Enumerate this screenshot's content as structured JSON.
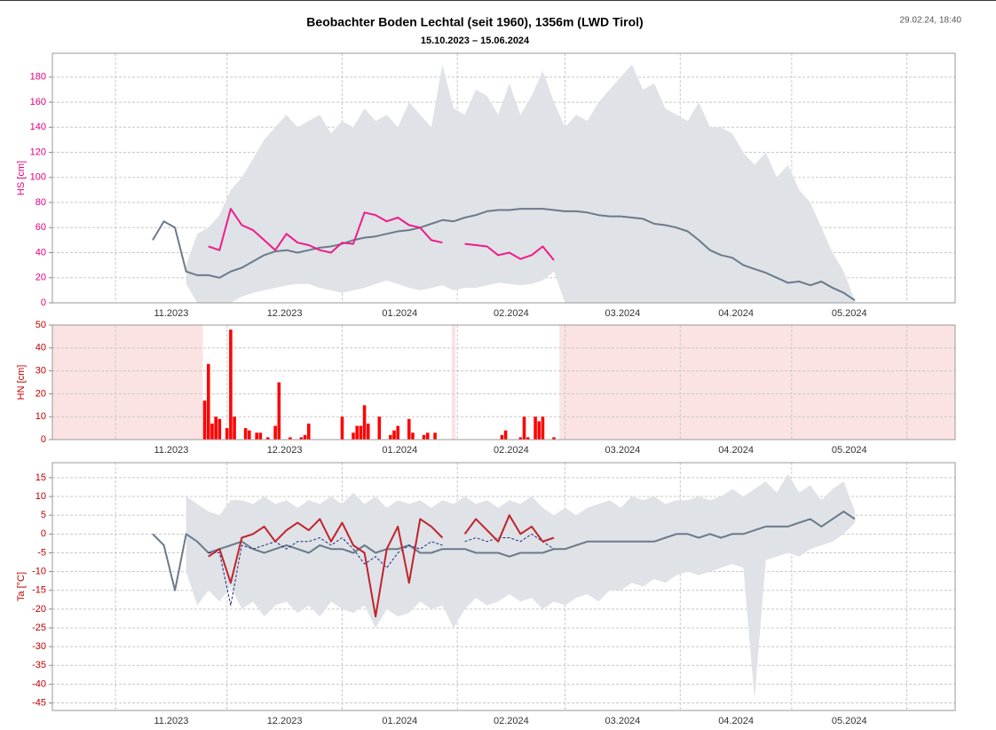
{
  "header": {
    "title": "Beobachter Boden Lechtal (seit 1960), 1356m (LWD Tirol)",
    "subtitle": "15.10.2023 – 15.06.2024",
    "timestamp": "29.02.24, 18:40"
  },
  "chart_data": [
    {
      "type": "line",
      "y_label": "HS [cm]",
      "axis_color": "#e6007e",
      "ylim": [
        0,
        199
      ],
      "yticks": [
        0,
        20,
        40,
        60,
        80,
        100,
        120,
        140,
        160,
        180
      ],
      "grid": true,
      "xlabels": [
        "11.2023",
        "12.2023",
        "01.2024",
        "02.2024",
        "03.2024",
        "04.2024",
        "05.2024"
      ],
      "band": {
        "color": "#dfe2e6",
        "max": [
          null,
          null,
          null,
          null,
          null,
          null,
          null,
          null,
          null,
          null,
          null,
          null,
          30,
          55,
          60,
          70,
          90,
          100,
          115,
          130,
          140,
          150,
          140,
          145,
          150,
          135,
          145,
          140,
          155,
          145,
          150,
          140,
          160,
          150,
          140,
          190,
          155,
          150,
          170,
          165,
          150,
          175,
          150,
          165,
          185,
          160,
          140,
          150,
          145,
          160,
          170,
          180,
          190,
          170,
          175,
          155,
          150,
          145,
          160,
          140,
          140,
          135,
          120,
          110,
          120,
          100,
          110,
          90,
          80,
          60,
          40,
          25,
          2,
          null,
          null,
          null,
          null,
          null,
          null,
          null,
          null,
          null
        ],
        "min": [
          null,
          null,
          null,
          null,
          null,
          null,
          null,
          null,
          null,
          null,
          null,
          null,
          15,
          0,
          0,
          0,
          0,
          5,
          8,
          10,
          12,
          14,
          15,
          15,
          12,
          10,
          8,
          10,
          12,
          15,
          18,
          15,
          12,
          10,
          12,
          14,
          10,
          12,
          12,
          14,
          16,
          15,
          14,
          15,
          18,
          25,
          0,
          0,
          0,
          0,
          0,
          0,
          0,
          0,
          0,
          0,
          0,
          0,
          0,
          0,
          0,
          0,
          0,
          0,
          0,
          0,
          0,
          0,
          0,
          0,
          0,
          0,
          0,
          null,
          null,
          null,
          null,
          null,
          null,
          null,
          null,
          null
        ]
      },
      "series": [
        {
          "color": "#6b7a8a",
          "style": "solid",
          "width": 2,
          "values": [
            null,
            null,
            null,
            null,
            null,
            null,
            null,
            null,
            null,
            50,
            65,
            60,
            25,
            22,
            22,
            20,
            25,
            28,
            33,
            38,
            41,
            42,
            40,
            42,
            44,
            45,
            47,
            50,
            52,
            53,
            55,
            57,
            58,
            60,
            63,
            66,
            65,
            68,
            70,
            73,
            74,
            74,
            75,
            75,
            75,
            74,
            73,
            73,
            72,
            70,
            69,
            69,
            68,
            67,
            63,
            62,
            60,
            57,
            50,
            42,
            38,
            36,
            30,
            27,
            24,
            20,
            16,
            17,
            14,
            17,
            12,
            8,
            2,
            null,
            null,
            null,
            null,
            null,
            null,
            null,
            null,
            null
          ]
        },
        {
          "color": "#ee1c8c",
          "style": "solid",
          "width": 2,
          "values": [
            null,
            null,
            null,
            null,
            null,
            null,
            null,
            null,
            null,
            null,
            null,
            null,
            null,
            null,
            45,
            42,
            75,
            62,
            58,
            50,
            42,
            55,
            48,
            46,
            42,
            40,
            48,
            47,
            72,
            70,
            65,
            68,
            62,
            60,
            50,
            48,
            null,
            47,
            46,
            45,
            38,
            40,
            35,
            38,
            45,
            34,
            null,
            null,
            null,
            null,
            null,
            null,
            null,
            null,
            null,
            null,
            null,
            null,
            null,
            null,
            null,
            null,
            null,
            null,
            null,
            null,
            null,
            null,
            null,
            null,
            null,
            null,
            null,
            null,
            null,
            null,
            null,
            null,
            null,
            null,
            null,
            null
          ]
        }
      ]
    },
    {
      "type": "bar",
      "y_label": "HN [cm]",
      "axis_color": "#c00000",
      "ylim": [
        0,
        50
      ],
      "yticks": [
        0,
        10,
        20,
        30,
        40,
        50
      ],
      "grid": true,
      "xlabels": [
        "11.2023",
        "12.2023",
        "01.2024",
        "02.2024",
        "03.2024",
        "04.2024",
        "05.2024"
      ],
      "color": "#ff0000",
      "missing_color": "#fbe3e3",
      "values": [
        null,
        null,
        null,
        null,
        null,
        null,
        null,
        null,
        null,
        null,
        null,
        null,
        null,
        null,
        null,
        null,
        null,
        null,
        null,
        null,
        null,
        null,
        null,
        null,
        null,
        null,
        null,
        null,
        null,
        null,
        null,
        null,
        null,
        null,
        null,
        null,
        null,
        null,
        null,
        null,
        null,
        17,
        33,
        7,
        10,
        9,
        0,
        5,
        48,
        10,
        0,
        0,
        5,
        4,
        0,
        3,
        3,
        0,
        1,
        0,
        6,
        25,
        0,
        0,
        1,
        0,
        0,
        1,
        2,
        7,
        0,
        0,
        0,
        0,
        0,
        0,
        0,
        0,
        10,
        0,
        0,
        3,
        6,
        6,
        15,
        7,
        0,
        0,
        10,
        0,
        0,
        2,
        4,
        6,
        0,
        0,
        9,
        3,
        0,
        0,
        2,
        3,
        0,
        3,
        0,
        0,
        0,
        0,
        null,
        0,
        0,
        0,
        0,
        0,
        0,
        0,
        0,
        0,
        0,
        0,
        0,
        2,
        4,
        0,
        0,
        0,
        1,
        10,
        1,
        0,
        10,
        8,
        10,
        0,
        0,
        1,
        0,
        null,
        null,
        null,
        null,
        null,
        null,
        null,
        null,
        null,
        null,
        null,
        null,
        null,
        null,
        null,
        null,
        null,
        null,
        null,
        null,
        null,
        null,
        null,
        null,
        null,
        null,
        null,
        null,
        null,
        null,
        null,
        null,
        null,
        null,
        null,
        null,
        null,
        null,
        null,
        null,
        null,
        null,
        null,
        null,
        null,
        null,
        null,
        null,
        null,
        null,
        null,
        null,
        null,
        null,
        null,
        null,
        null,
        null,
        null,
        null,
        null,
        null,
        null,
        null,
        null,
        null,
        null,
        null,
        null,
        null,
        null,
        null,
        null,
        null,
        null,
        null,
        null,
        null,
        null,
        null,
        null,
        null,
        null,
        null,
        null,
        null,
        null,
        null,
        null,
        null,
        null,
        null,
        null,
        null,
        null,
        null,
        null,
        null,
        null,
        null,
        null,
        null,
        null,
        null,
        null,
        null,
        null
      ]
    },
    {
      "type": "line",
      "y_label": "Ta [°C]",
      "axis_color": "#c00000",
      "ylim": [
        -47,
        19
      ],
      "yticks": [
        15,
        10,
        5,
        0,
        -5,
        -10,
        -15,
        -20,
        -25,
        -30,
        -35,
        -40,
        -45
      ],
      "grid": true,
      "xlabels": [
        "11.2023",
        "12.2023",
        "01.2024",
        "02.2024",
        "03.2024",
        "04.2024",
        "05.2024"
      ],
      "band": {
        "color": "#dfe2e6",
        "max": [
          null,
          null,
          null,
          null,
          null,
          null,
          null,
          null,
          null,
          null,
          null,
          null,
          10,
          8,
          6,
          5,
          9,
          9,
          8,
          10,
          8,
          9,
          7,
          9,
          8,
          10,
          8,
          11,
          8,
          10,
          7,
          9,
          8,
          9,
          7,
          9,
          8,
          10,
          8,
          9,
          7,
          9,
          8,
          10,
          7,
          5,
          7,
          5,
          7,
          8,
          9,
          7,
          10,
          9,
          10,
          8,
          9,
          9,
          10,
          9,
          10,
          12,
          10,
          12,
          14,
          11,
          16,
          11,
          13,
          9,
          12,
          14,
          6,
          null,
          null,
          null,
          null,
          null,
          null,
          null,
          null,
          null
        ],
        "min": [
          null,
          null,
          null,
          null,
          null,
          null,
          null,
          null,
          null,
          null,
          null,
          null,
          -10,
          -19,
          -15,
          -18,
          -14,
          -20,
          -18,
          -22,
          -19,
          -18,
          -21,
          -19,
          -22,
          -18,
          -20,
          -21,
          -19,
          -25,
          -20,
          -22,
          -21,
          -18,
          -20,
          -19,
          -25,
          -20,
          -17,
          -19,
          -18,
          -16,
          -18,
          -17,
          -20,
          -18,
          -19,
          -17,
          -16,
          -18,
          -15,
          -15,
          -13,
          -14,
          -12,
          -13,
          -11,
          -10,
          -11,
          -10,
          -9,
          -8,
          -9,
          -44,
          -7,
          -6,
          -5,
          -6,
          -4,
          -3,
          -2,
          0,
          3,
          null,
          null,
          null,
          null,
          null,
          null,
          null,
          null,
          null
        ]
      },
      "series": [
        {
          "color": "#6b7a8a",
          "style": "solid",
          "width": 2,
          "values": [
            null,
            null,
            null,
            null,
            null,
            null,
            null,
            null,
            null,
            0,
            -3,
            -15,
            0,
            -2,
            -5,
            -4,
            -3,
            -2,
            -4,
            -5,
            -4,
            -3,
            -4,
            -5,
            -3,
            -4,
            -4,
            -5,
            -3,
            -5,
            -4,
            -4,
            -3,
            -5,
            -5,
            -4,
            -4,
            -4,
            -5,
            -5,
            -5,
            -6,
            -5,
            -5,
            -5,
            -4,
            -4,
            -3,
            -2,
            -2,
            -2,
            -2,
            -2,
            -2,
            -2,
            -1,
            0,
            0,
            -1,
            0,
            -1,
            0,
            0,
            1,
            2,
            2,
            2,
            3,
            4,
            2,
            4,
            6,
            4,
            null,
            null,
            null,
            null,
            null,
            null,
            null,
            null,
            null
          ]
        },
        {
          "color": "#1f2a80",
          "style": "dashed",
          "width": 1,
          "values": [
            null,
            null,
            null,
            null,
            null,
            null,
            null,
            null,
            null,
            null,
            null,
            null,
            null,
            null,
            -5,
            -5,
            -19,
            -3,
            -4,
            -3,
            -2,
            -4,
            -2,
            -2,
            -1,
            -3,
            -1,
            -4,
            -8,
            -6,
            -9,
            -5,
            -3,
            -4,
            -2,
            -3,
            null,
            -2,
            -1,
            -2,
            -1,
            -1,
            -2,
            0,
            -2,
            -4,
            null,
            null,
            null,
            null,
            null,
            null,
            null,
            null,
            null,
            null,
            null,
            null,
            null,
            null,
            null,
            null,
            null,
            null,
            null,
            null,
            null,
            null,
            null,
            null,
            null,
            null,
            null,
            null,
            null,
            null,
            null,
            null,
            null,
            null,
            null,
            null
          ]
        },
        {
          "color": "#c0232c",
          "style": "solid",
          "width": 2,
          "values": [
            null,
            null,
            null,
            null,
            null,
            null,
            null,
            null,
            null,
            null,
            null,
            null,
            null,
            null,
            -6,
            -4,
            -13,
            -1,
            0,
            2,
            -2,
            1,
            3,
            1,
            4,
            -2,
            3,
            -3,
            -5,
            -22,
            -4,
            2,
            -13,
            4,
            2,
            -1,
            null,
            0,
            4,
            1,
            -2,
            5,
            0,
            2,
            -2,
            -1,
            null,
            null,
            null,
            null,
            null,
            null,
            null,
            null,
            null,
            null,
            null,
            null,
            null,
            null,
            null,
            null,
            null,
            null,
            null,
            null,
            null,
            null,
            null,
            null,
            null,
            null,
            null,
            null,
            null,
            null,
            null,
            null,
            null,
            null,
            null,
            null
          ]
        }
      ]
    }
  ]
}
